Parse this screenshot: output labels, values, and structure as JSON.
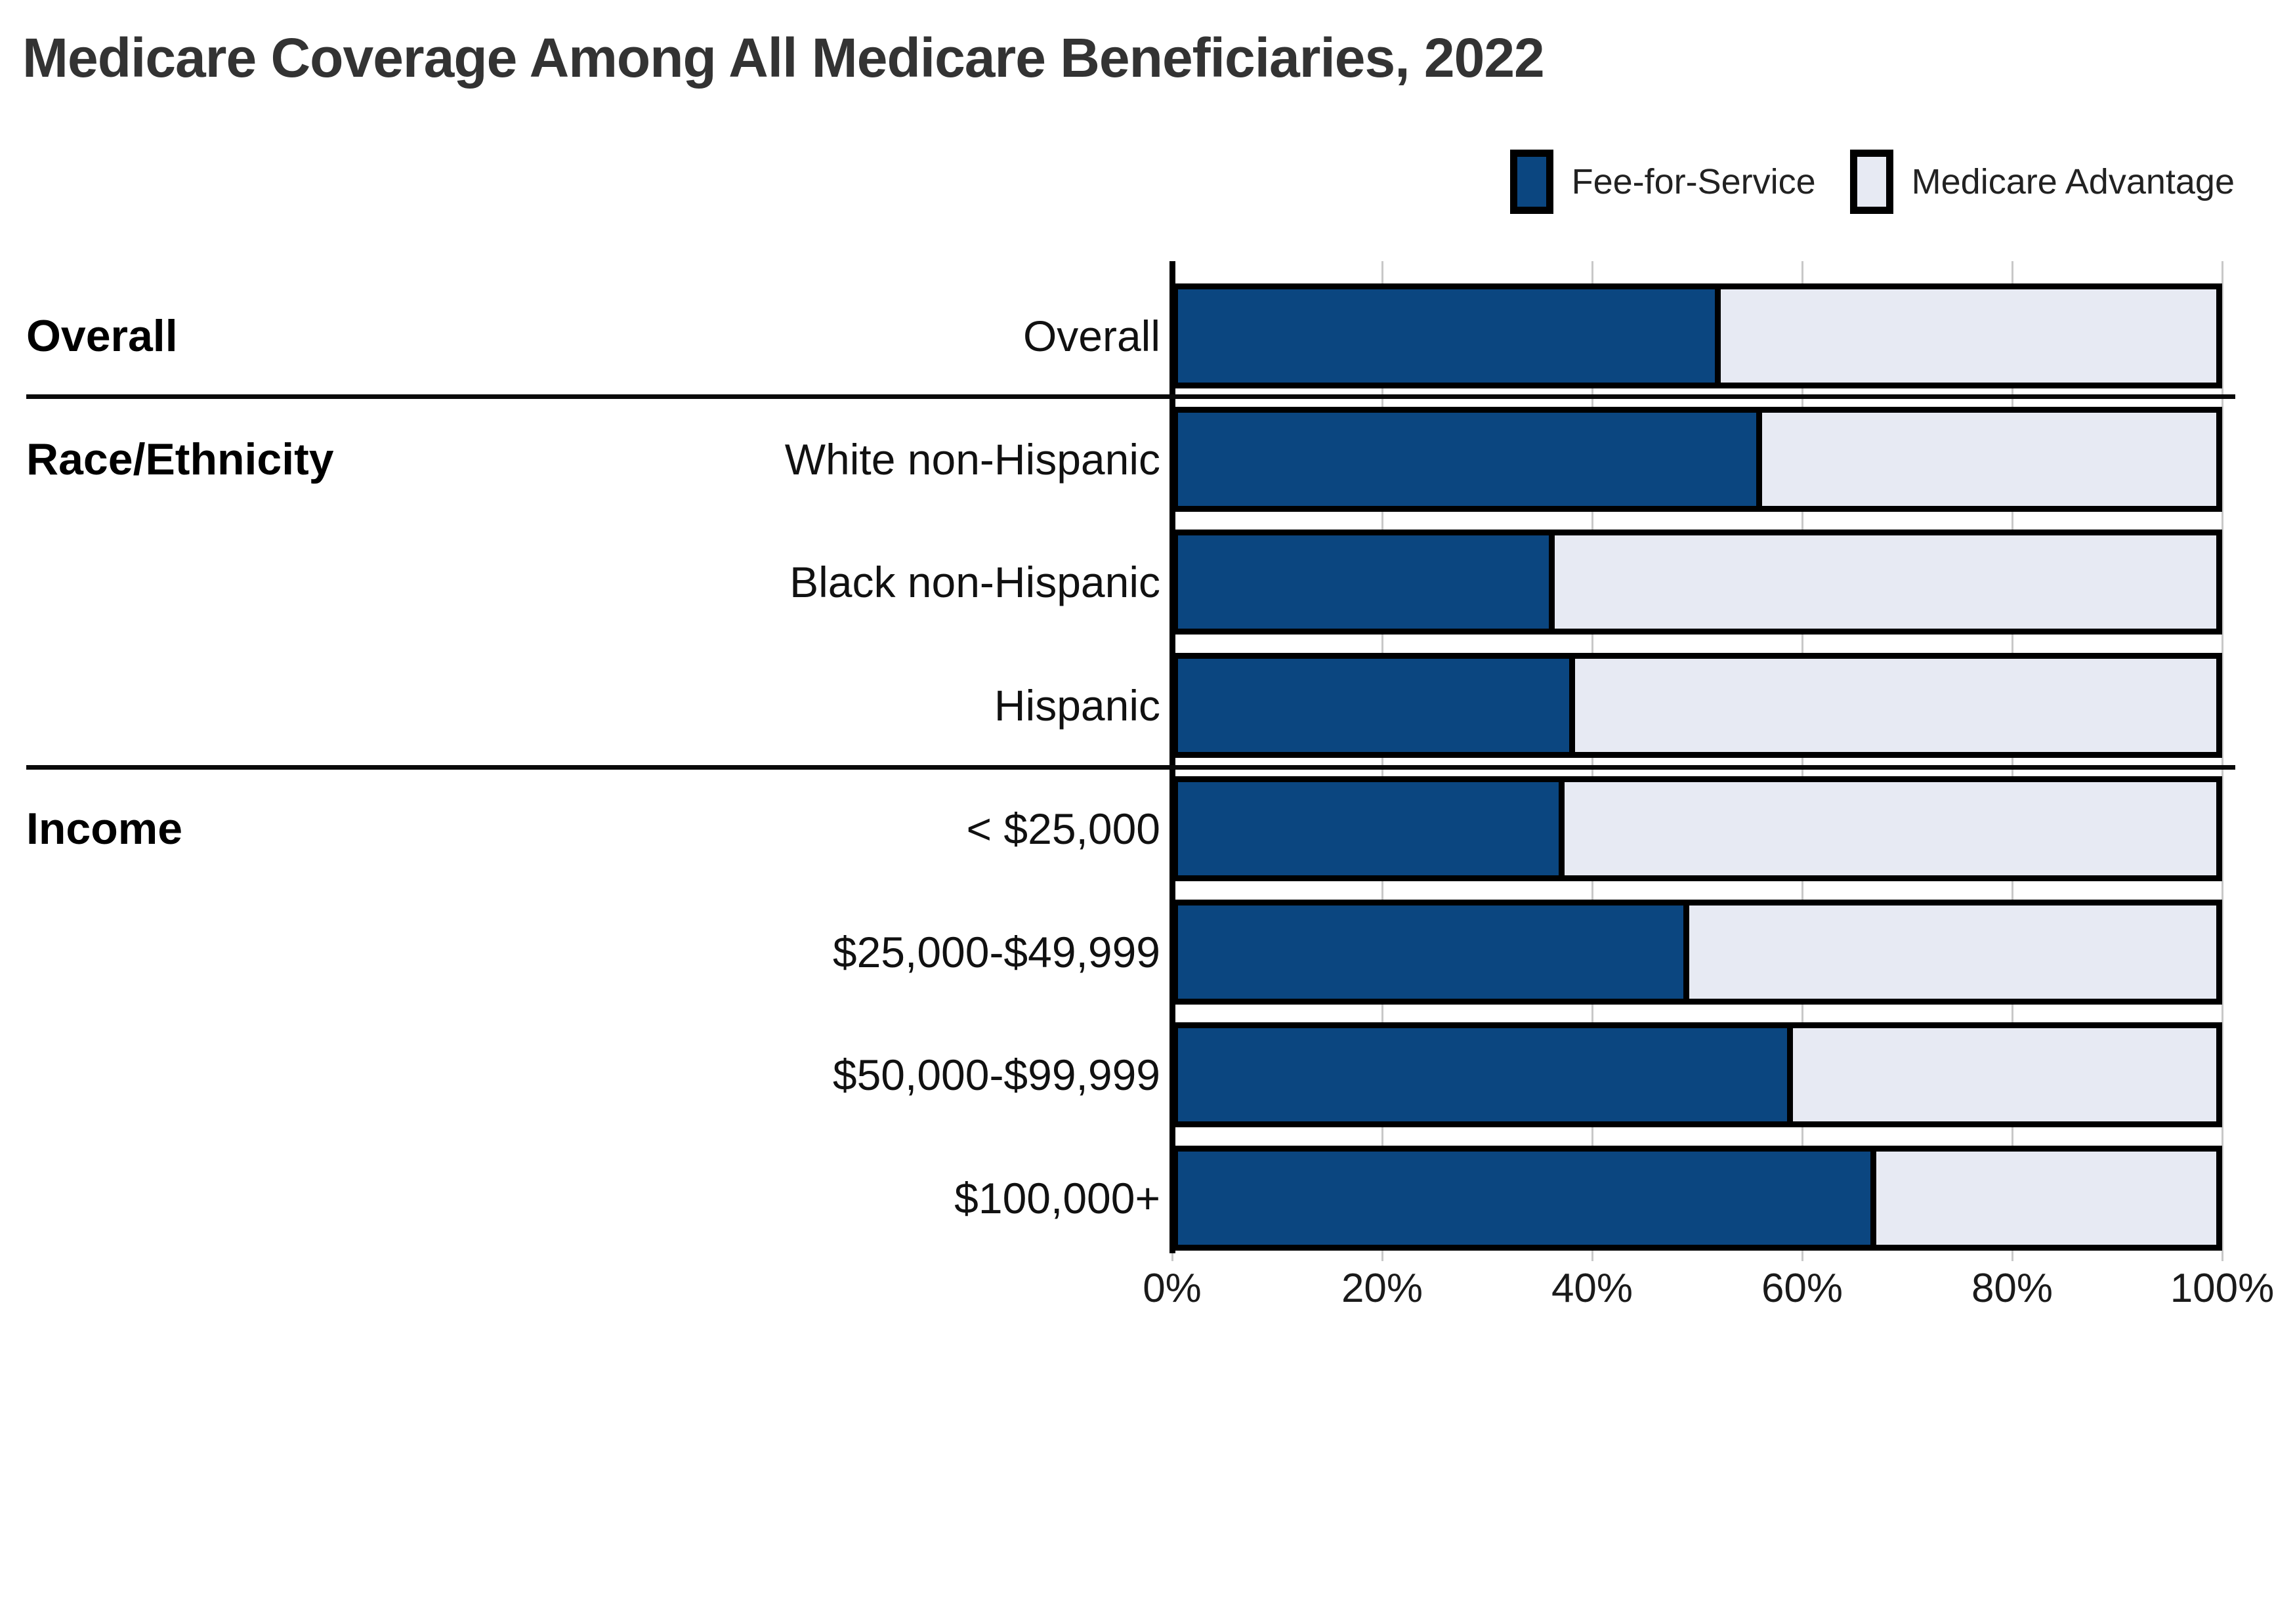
{
  "title": "Medicare Coverage Among All Medicare Beneficiaries, 2022",
  "legend": [
    {
      "label": "Fee-for-Service",
      "color": "#0B4680"
    },
    {
      "label": "Medicare Advantage",
      "color": "#E7EAF3"
    }
  ],
  "colors": {
    "fee_for_service": "#0B4680",
    "medicare_advantage": "#E7EAF3",
    "bar_border": "#000000",
    "gridline": "#c8c8c8",
    "title_text": "#333333"
  },
  "chart_data": {
    "type": "bar",
    "orientation": "horizontal",
    "stacked": true,
    "unit": "percent",
    "title": "Medicare Coverage Among All Medicare Beneficiaries, 2022",
    "xlabel": "",
    "ylabel": "",
    "xlim": [
      0,
      100
    ],
    "x_ticks": [
      "0%",
      "20%",
      "40%",
      "60%",
      "80%",
      "100%"
    ],
    "x_tick_values": [
      0,
      20,
      40,
      60,
      80,
      100
    ],
    "grid": true,
    "legend_position": "top-right",
    "categories": [
      "Overall",
      "White non-Hispanic",
      "Black non-Hispanic",
      "Hispanic",
      "< $25,000",
      "$25,000-$49,999",
      "$50,000-$99,999",
      "$100,000+"
    ],
    "series": [
      {
        "name": "Fee-for-Service",
        "values": [
          52,
          56,
          36,
          38,
          37,
          49,
          59,
          67
        ]
      },
      {
        "name": "Medicare Advantage",
        "values": [
          48,
          44,
          64,
          62,
          63,
          51,
          41,
          33
        ]
      }
    ],
    "sections": [
      {
        "label": "Overall",
        "rows": [
          {
            "label": "Overall",
            "fee_for_service": 52,
            "medicare_advantage": 48
          }
        ]
      },
      {
        "label": "Race/Ethnicity",
        "rows": [
          {
            "label": "White non-Hispanic",
            "fee_for_service": 56,
            "medicare_advantage": 44
          },
          {
            "label": "Black non-Hispanic",
            "fee_for_service": 36,
            "medicare_advantage": 64
          },
          {
            "label": "Hispanic",
            "fee_for_service": 38,
            "medicare_advantage": 62
          }
        ]
      },
      {
        "label": "Income",
        "rows": [
          {
            "label": "< $25,000",
            "fee_for_service": 37,
            "medicare_advantage": 63
          },
          {
            "label": "$25,000-$49,999",
            "fee_for_service": 49,
            "medicare_advantage": 51
          },
          {
            "label": "$50,000-$99,999",
            "fee_for_service": 59,
            "medicare_advantage": 41
          },
          {
            "label": "$100,000+",
            "fee_for_service": 67,
            "medicare_advantage": 33
          }
        ]
      }
    ]
  }
}
